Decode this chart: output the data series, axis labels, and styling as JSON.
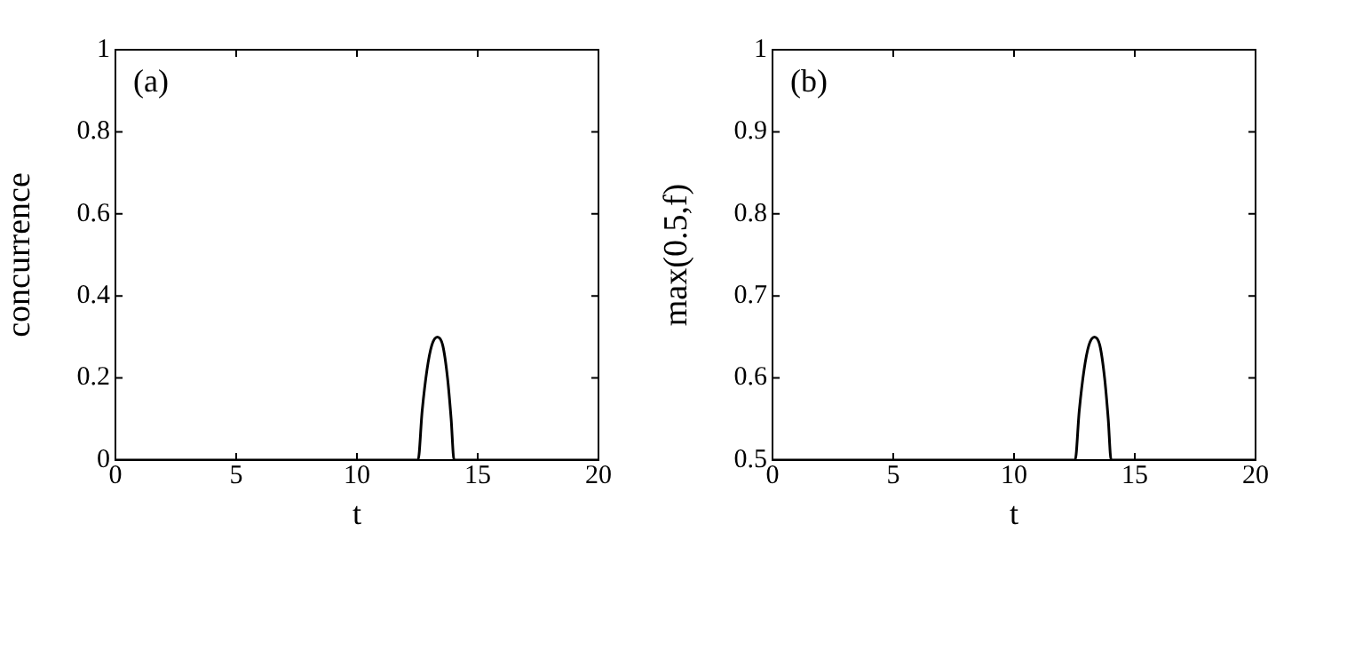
{
  "chart_data": [
    {
      "type": "line",
      "xlabel": "t",
      "ylabel": "concurrence",
      "annotations": [
        "(a)"
      ],
      "xlim": [
        0,
        20
      ],
      "xticks": [
        0,
        5,
        10,
        15,
        20
      ],
      "ylim": [
        0,
        1
      ],
      "yticks": [
        0,
        0.2,
        0.4,
        0.6,
        0.8,
        1
      ],
      "grid": false,
      "legend": false,
      "marker": "none",
      "line_style": "solid",
      "series": [
        {
          "color": "#000000",
          "x": [
            0,
            12.53,
            12.7,
            12.9,
            13.1,
            13.33,
            13.55,
            13.75,
            13.9,
            14.02,
            20
          ],
          "values": [
            0,
            0,
            0.12,
            0.22,
            0.28,
            0.3,
            0.28,
            0.2,
            0.1,
            0,
            0
          ]
        }
      ]
    },
    {
      "type": "line",
      "xlabel": "t",
      "ylabel": "max(0.5,f)",
      "annotations": [
        "(b)"
      ],
      "xlim": [
        0,
        20
      ],
      "xticks": [
        0,
        5,
        10,
        15,
        20
      ],
      "ylim": [
        0.5,
        1
      ],
      "yticks": [
        0.5,
        0.6,
        0.7,
        0.8,
        0.9,
        1
      ],
      "grid": false,
      "legend": false,
      "marker": "none",
      "line_style": "solid",
      "series": [
        {
          "color": "#000000",
          "x": [
            0,
            12.53,
            12.7,
            12.9,
            13.1,
            13.33,
            13.55,
            13.75,
            13.9,
            14.02,
            20
          ],
          "values": [
            0.5,
            0.5,
            0.56,
            0.61,
            0.64,
            0.65,
            0.64,
            0.6,
            0.55,
            0.5,
            0.5
          ]
        }
      ]
    }
  ]
}
